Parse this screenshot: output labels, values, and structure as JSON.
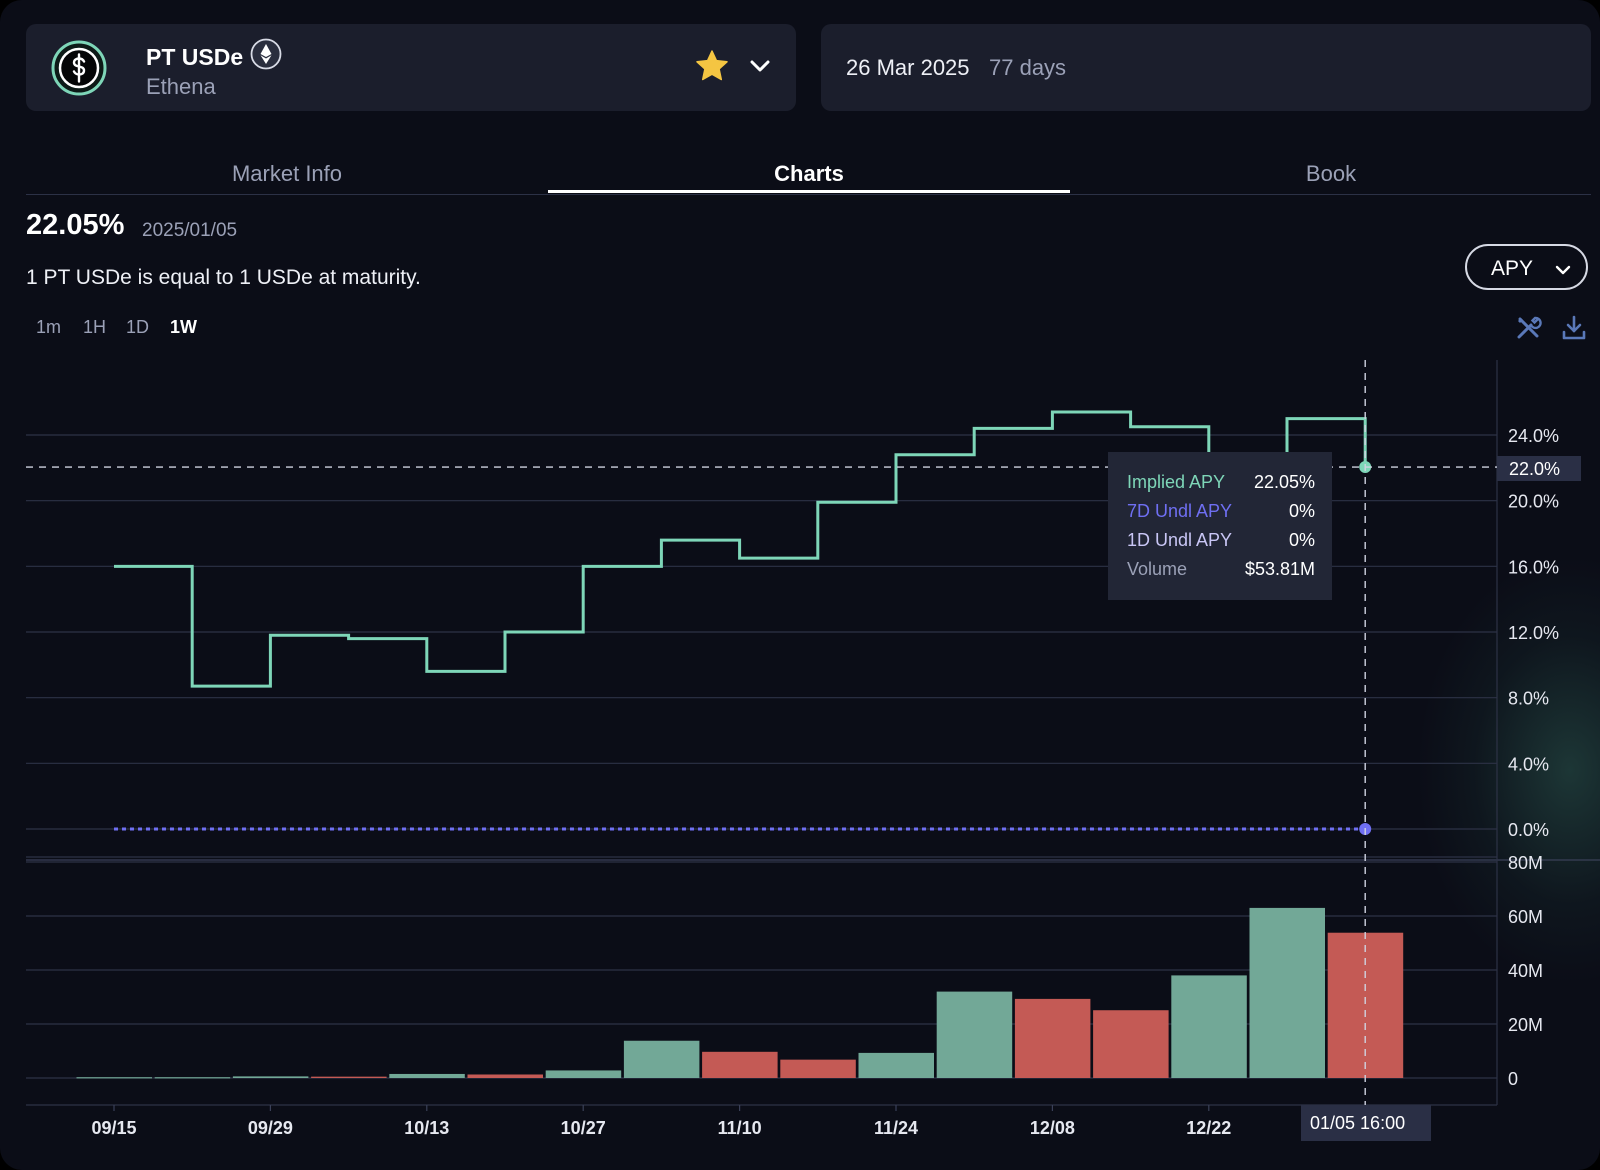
{
  "market": {
    "name": "PT USDe",
    "issuer": "Ethena",
    "icons": [
      "dollar-coin-icon",
      "ethereum-icon",
      "star-icon",
      "chevron-down-icon"
    ],
    "star_color": "#f4c542"
  },
  "maturity": {
    "date": "26 Mar 2025",
    "days_left": "77 days"
  },
  "tabs": [
    {
      "label": "Market Info",
      "active": false
    },
    {
      "label": "Charts",
      "active": true
    },
    {
      "label": "Book",
      "active": false
    }
  ],
  "summary": {
    "current_apy": "22.05%",
    "date": "2025/01/05",
    "note": "1 PT USDe is equal to 1 USDe at maturity."
  },
  "metric_select": {
    "value": "APY"
  },
  "timeframes": [
    {
      "label": "1m",
      "active": false
    },
    {
      "label": "1H",
      "active": false
    },
    {
      "label": "1D",
      "active": false
    },
    {
      "label": "1W",
      "active": true
    }
  ],
  "toolbar_icons": [
    "tools-icon",
    "download-icon"
  ],
  "colors": {
    "implied_apy": "#7ed6b8",
    "underlying_apy": "#6f6ff2",
    "volume_up": "#72a897",
    "volume_down": "#c45a55",
    "background": "#0b0d17",
    "card": "#1b1e2c"
  },
  "tooltip": {
    "rows": [
      {
        "label": "Implied APY",
        "value": "22.05%",
        "color": "#7ed6b8"
      },
      {
        "label": "7D Undl APY",
        "value": "0%",
        "color": "#6f6ff2"
      },
      {
        "label": "1D Undl APY",
        "value": "0%",
        "color": "#c9c6f5"
      },
      {
        "label": "Volume",
        "value": "$53.81M",
        "color": "#9ba1b7"
      }
    ]
  },
  "crosshair": {
    "y_label": "22.0%",
    "x_label": "01/05 16:00"
  },
  "chart_data": {
    "type": "line",
    "x_tick_labels": [
      "09/15",
      "09/29",
      "10/13",
      "10/27",
      "11/10",
      "11/24",
      "12/08",
      "12/22"
    ],
    "apy_axis": {
      "ticks": [
        "0.0%",
        "4.0%",
        "8.0%",
        "12.0%",
        "16.0%",
        "20.0%",
        "24.0%"
      ],
      "ylim": [
        0,
        28
      ]
    },
    "volume_axis": {
      "ticks": [
        "0",
        "20M",
        "40M",
        "60M",
        "80M"
      ],
      "ylim": [
        0,
        80
      ]
    },
    "grid": true,
    "series": [
      {
        "name": "Implied APY",
        "step": true,
        "values": [
          16.0,
          8.7,
          11.8,
          11.6,
          9.6,
          12.0,
          16.0,
          17.6,
          16.5,
          19.9,
          22.8,
          24.4,
          25.4,
          24.5,
          20.9,
          25.0,
          22.05
        ]
      },
      {
        "name": "7D Undl APY",
        "values": [
          0,
          0
        ]
      },
      {
        "name": "Volume",
        "values": [
          0.3,
          0.3,
          0.6,
          0.5,
          1.5,
          1.3,
          2.8,
          13.8,
          9.7,
          6.8,
          9.3,
          32.0,
          29.3,
          25.1,
          38.0,
          63.0,
          53.81
        ],
        "direction": [
          "up",
          "up",
          "up",
          "down",
          "up",
          "down",
          "up",
          "up",
          "down",
          "down",
          "up",
          "up",
          "down",
          "down",
          "up",
          "up",
          "down"
        ]
      }
    ]
  }
}
